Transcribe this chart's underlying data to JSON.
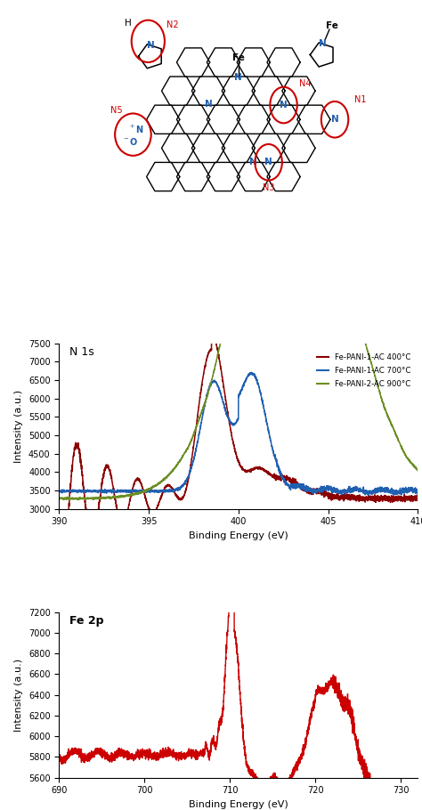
{
  "n1s_label": "N 1s",
  "fe2p_label": "Fe 2p",
  "n1s_xlabel": "Binding Energy (eV)",
  "fe2p_xlabel": "Binding Energy (eV)",
  "n1s_ylabel": "Intensity (a.u.)",
  "fe2p_ylabel": "Intensity (a.u.)",
  "n1s_xlim": [
    390,
    410
  ],
  "n1s_ylim": [
    3000,
    7500
  ],
  "fe2p_xlim": [
    690,
    732
  ],
  "fe2p_ylim": [
    5600,
    7200
  ],
  "n1s_xticks": [
    390,
    395,
    400,
    405,
    410
  ],
  "n1s_yticks": [
    3000,
    3500,
    4000,
    4500,
    5000,
    5500,
    6000,
    6500,
    7000,
    7500
  ],
  "fe2p_xticks": [
    690,
    700,
    710,
    720,
    730
  ],
  "fe2p_yticks": [
    5600,
    5800,
    6000,
    6200,
    6400,
    6600,
    6800,
    7000,
    7200
  ],
  "legend_labels": [
    "Fe-PANI-1-AC 400°C",
    "Fe-PANI-1-AC 700°C",
    "Fe-PANI-2-AC 900°C"
  ],
  "line_colors": [
    "#8B0000",
    "#2060B0",
    "#6B8E23"
  ],
  "fe2p_color": "#CC0000",
  "bg_color": "#ffffff",
  "n_color": "#2060B0",
  "fe_color": "#000000",
  "circle_color": "#CC0000"
}
